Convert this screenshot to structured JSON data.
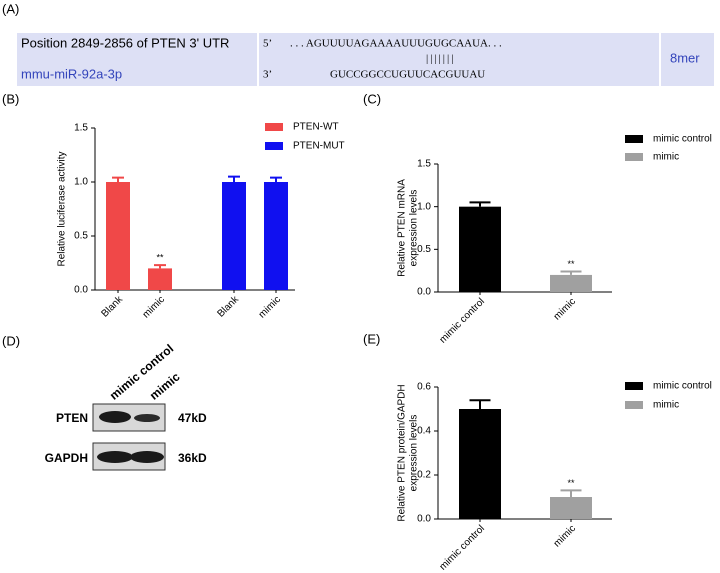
{
  "panel_a": {
    "label": "(A)",
    "target": "Position 2849-2856 of PTEN 3' UTR",
    "target_prime": "5’",
    "target_seq": ". . . AGUUUUAGAAAAUUUGUGCAAUA. . .",
    "pairing": "|||||||",
    "mirna": "mmu-miR-92a-3p",
    "mirna_prime": "3’",
    "mirna_seq": "GUCCGGCCUGUUCACGUUAU",
    "site_type": "8mer"
  },
  "panel_d": {
    "label": "(D)",
    "lanes": [
      "mimic control",
      "mimic"
    ],
    "rows": [
      {
        "name": "PTEN",
        "size": "47kD"
      },
      {
        "name": "GAPDH",
        "size": "36kD"
      }
    ]
  },
  "chart_data": [
    {
      "type": "bar",
      "panel": "(B)",
      "y_label": [
        "Relative luciferase activity"
      ],
      "categories": [
        "Blank",
        "mimic",
        "Blank",
        "mimic"
      ],
      "series": [
        {
          "name": "PTEN-WT",
          "color": "#f04848",
          "values": [
            1.0,
            0.2,
            null,
            null
          ],
          "errors": [
            0.04,
            0.03,
            null,
            null
          ],
          "marks": [
            null,
            "**",
            null,
            null
          ]
        },
        {
          "name": "PTEN-MUT",
          "color": "#1010f0",
          "values": [
            null,
            null,
            1.0,
            1.0
          ],
          "errors": [
            null,
            null,
            0.05,
            0.04
          ],
          "marks": [
            null,
            null,
            null,
            null
          ]
        }
      ],
      "ylim": [
        0,
        1.5
      ],
      "yticks": [
        {
          "value": 0,
          "label": "0.0"
        },
        0.5,
        {
          "value": 1,
          "label": "1.0"
        },
        1.5
      ]
    },
    {
      "type": "bar",
      "panel": "(C)",
      "y_label": [
        "Relative PTEN mRNA",
        "expression levels"
      ],
      "categories": [
        "mimic control",
        "mimic"
      ],
      "series": [
        {
          "name": "mimic control",
          "color": "#000000",
          "values": [
            1.0,
            null
          ],
          "errors": [
            0.05,
            null
          ],
          "marks": [
            null,
            null
          ]
        },
        {
          "name": "mimic",
          "color": "#a0a0a0",
          "values": [
            null,
            0.2
          ],
          "errors": [
            null,
            0.04
          ],
          "marks": [
            null,
            "**"
          ]
        }
      ],
      "ylim": [
        0,
        1.5
      ],
      "yticks": [
        {
          "value": 0,
          "label": "0.0"
        },
        0.5,
        {
          "value": 1,
          "label": "1.0"
        },
        1.5
      ]
    },
    {
      "type": "bar",
      "panel": "(E)",
      "y_label": [
        "Relative PTEN protein/GAPDH",
        "expression levels"
      ],
      "categories": [
        "mimic control",
        "mimic"
      ],
      "series": [
        {
          "name": "mimic control",
          "color": "#000000",
          "values": [
            0.5,
            null
          ],
          "errors": [
            0.04,
            null
          ],
          "marks": [
            null,
            null
          ]
        },
        {
          "name": "mimic",
          "color": "#a0a0a0",
          "values": [
            null,
            0.1
          ],
          "errors": [
            null,
            0.03
          ],
          "marks": [
            null,
            "**"
          ]
        }
      ],
      "ylim": [
        0,
        0.6
      ],
      "yticks": [
        {
          "value": 0,
          "label": "0.0"
        },
        0.2,
        0.4,
        0.6
      ]
    }
  ]
}
